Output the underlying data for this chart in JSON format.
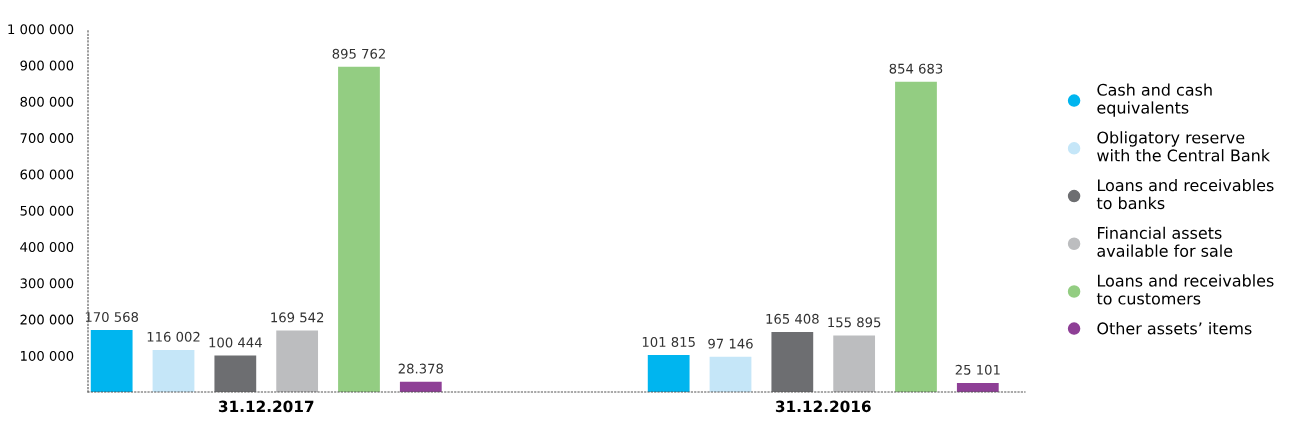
{
  "chart_data": {
    "type": "bar",
    "categories": [
      "31.12.2017",
      "31.12.2016"
    ],
    "series": [
      {
        "name": "Cash and cash\nequivalents",
        "color": "#00b5ef",
        "values": [
          170568,
          101815
        ],
        "value_labels": [
          "170 568",
          "101 815"
        ]
      },
      {
        "name": "Obligatory reserve\nwith the Central Bank",
        "color": "#c5e6f8",
        "values": [
          116002,
          97146
        ],
        "value_labels": [
          "116 002",
          "97 146"
        ]
      },
      {
        "name": "Loans and receivables\nto banks",
        "color": "#6d6e71",
        "values": [
          100444,
          165408
        ],
        "value_labels": [
          "100 444",
          "165 408"
        ]
      },
      {
        "name": "Financial assets\navailable for sale",
        "color": "#bcbdbf",
        "values": [
          169542,
          155895
        ],
        "value_labels": [
          "169 542",
          "155 895"
        ]
      },
      {
        "name": "Loans and receivables\nto customers",
        "color": "#93cd82",
        "values": [
          895762,
          854683
        ],
        "value_labels": [
          "895 762",
          "854 683"
        ]
      },
      {
        "name": "Other assets’ items",
        "color": "#8e3f96",
        "values": [
          28378,
          25101
        ],
        "value_labels": [
          "28.378",
          "25 101"
        ]
      }
    ],
    "ylim": [
      0,
      1000000
    ],
    "yticks": [
      {
        "value": 100000,
        "label": "100 000"
      },
      {
        "value": 200000,
        "label": "200 000"
      },
      {
        "value": 300000,
        "label": "300 000"
      },
      {
        "value": 400000,
        "label": "400 000"
      },
      {
        "value": 500000,
        "label": "500 000"
      },
      {
        "value": 600000,
        "label": "600 000"
      },
      {
        "value": 700000,
        "label": "700 000"
      },
      {
        "value": 800000,
        "label": "800 000"
      },
      {
        "value": 900000,
        "label": "900 000"
      },
      {
        "value": 1000000,
        "label": "1 000 000"
      }
    ],
    "grid": false,
    "legend": "right",
    "marker": "circle"
  }
}
